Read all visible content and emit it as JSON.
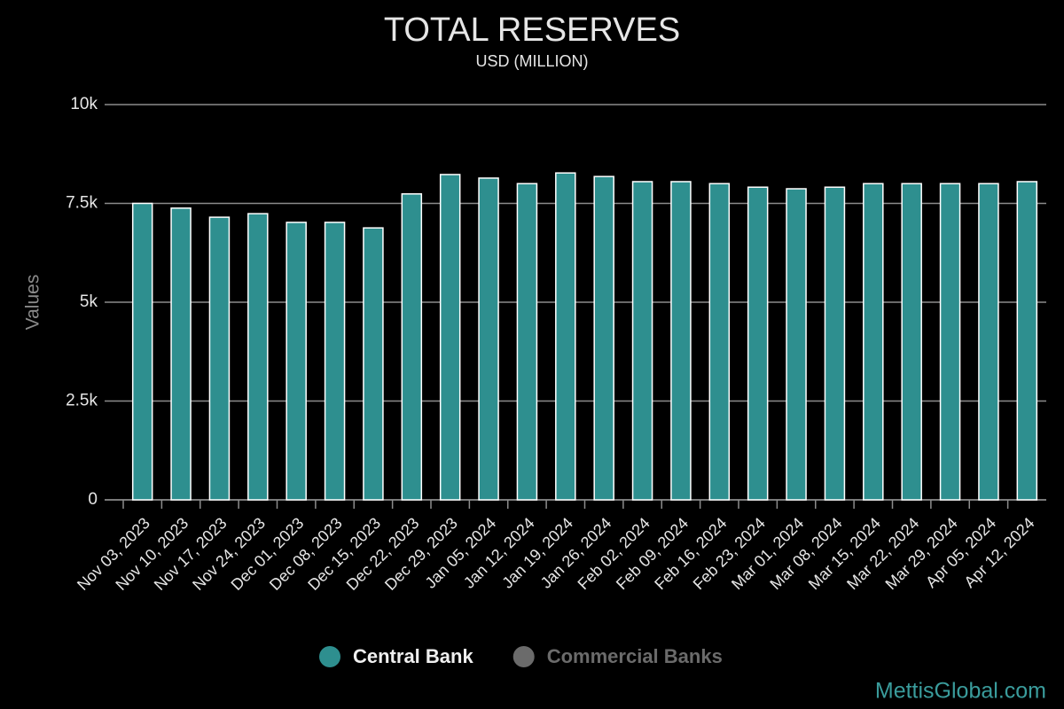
{
  "chart_data": {
    "type": "bar",
    "title": "TOTAL RESERVES",
    "subtitle": "USD (MILLION)",
    "y_label": "Values",
    "watermark": "MettisGlobal.com",
    "categories": [
      "Nov 03, 2023",
      "Nov 10, 2023",
      "Nov 17, 2023",
      "Nov 24, 2023",
      "Dec 01, 2023",
      "Dec 08, 2023",
      "Dec 15, 2023",
      "Dec 22, 2023",
      "Dec 29, 2023",
      "Jan 05, 2024",
      "Jan 12, 2024",
      "Jan 19, 2024",
      "Jan 26, 2024",
      "Feb 02, 2024",
      "Feb 09, 2024",
      "Feb 16, 2024",
      "Feb 23, 2024",
      "Mar 01, 2024",
      "Mar 08, 2024",
      "Mar 15, 2024",
      "Mar 22, 2024",
      "Mar 29, 2024",
      "Apr 05, 2024",
      "Apr 12, 2024"
    ],
    "series": [
      {
        "name": "Central Bank",
        "color": "#2e8f8f",
        "visible": true,
        "values": [
          7500,
          7380,
          7150,
          7240,
          7020,
          7020,
          6880,
          7740,
          8230,
          8140,
          8000,
          8270,
          8180,
          8050,
          8050,
          8000,
          7910,
          7870,
          7910,
          8000,
          8000,
          8000,
          8000,
          8050
        ]
      },
      {
        "name": "Commercial Banks",
        "color": "#6b6b6b",
        "visible": false
      }
    ],
    "ylim": [
      0,
      10000
    ],
    "yticks": [
      0,
      {
        "value": 2500,
        "label": "2.5k"
      },
      {
        "value": 5000,
        "label": "5k"
      },
      {
        "value": 7500,
        "label": "7.5k"
      },
      {
        "value": 10000,
        "label": "10k"
      }
    ],
    "grid": true
  }
}
